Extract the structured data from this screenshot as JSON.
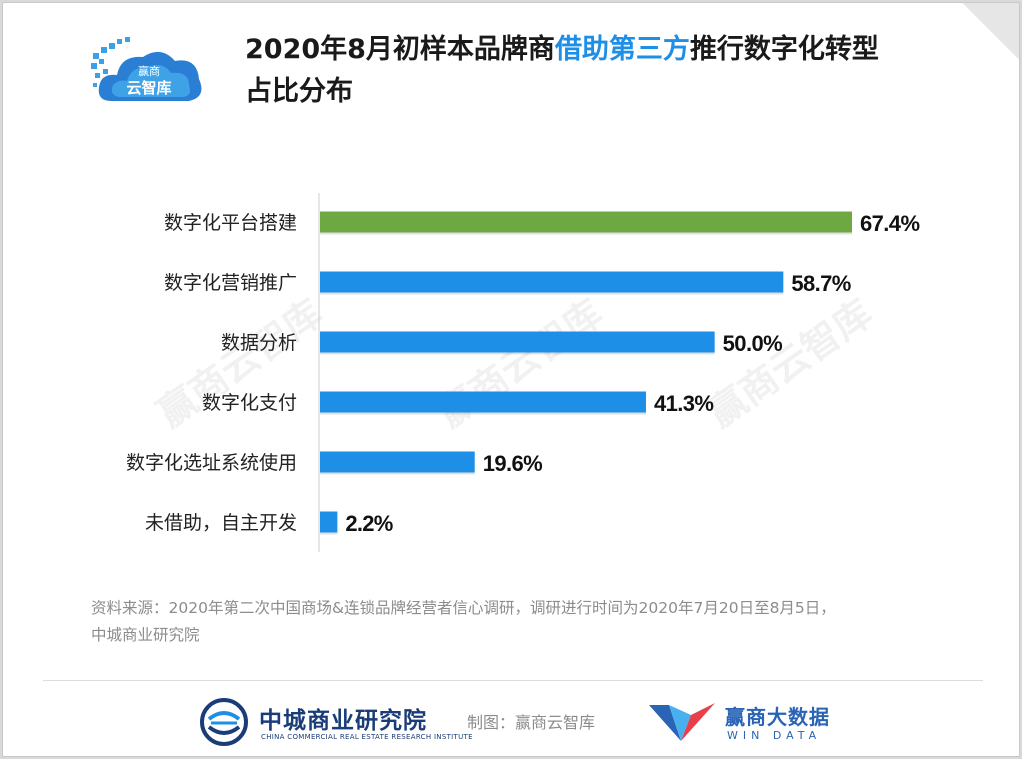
{
  "header": {
    "title_part1": "2020年8月初样本品牌商",
    "title_highlight": "借助第三方",
    "title_part2": "推行数字化转型",
    "title_line2": "占比分布",
    "logo_text_top": "赢商",
    "logo_text_bottom": "云智库"
  },
  "chart_data": {
    "type": "bar",
    "orientation": "horizontal",
    "categories": [
      "数字化平台搭建",
      "数字化营销推广",
      "数据分析",
      "数字化支付",
      "数字化选址系统使用",
      "未借助，自主开发"
    ],
    "values": [
      67.4,
      58.7,
      50.0,
      41.3,
      19.6,
      2.2
    ],
    "value_labels": [
      "67.4%",
      "58.7%",
      "50.0%",
      "41.3%",
      "19.6%",
      "2.2%"
    ],
    "highlight_index": 0,
    "colors": {
      "highlight": "#6ea843",
      "default": "#1e8fe6"
    },
    "xlim": [
      0,
      67.4
    ]
  },
  "watermark": "赢商云智库",
  "source": {
    "line1": "资料来源：2020年第二次中国商场&连锁品牌经营者信心调研，调研进行时间为2020年7月20日至8月5日，",
    "line2": "中城商业研究院"
  },
  "footer": {
    "zc_name": "中城商业研究院",
    "zc_en": "CHINA COMMERCIAL REAL ESTATE RESEARCH INSTITUTE",
    "credit": "制图：赢商云智库",
    "wd_name": "赢商大数据",
    "wd_en": "WIN DATA"
  }
}
